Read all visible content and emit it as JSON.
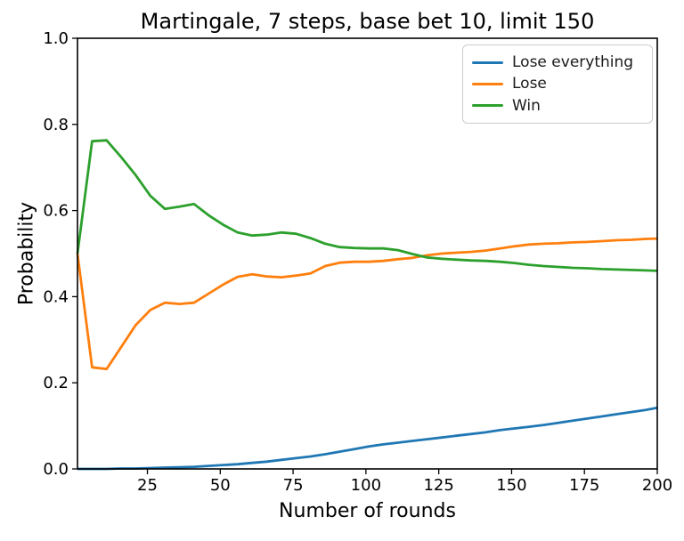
{
  "chart_data": {
    "type": "line",
    "title": "Martingale, 7 steps, base bet 10, limit 150",
    "xlabel": "Number of rounds",
    "ylabel": "Probability",
    "xlim": [
      1,
      200
    ],
    "ylim": [
      0.0,
      1.0
    ],
    "xticks": [
      25,
      50,
      75,
      100,
      125,
      150,
      175,
      200
    ],
    "yticks": [
      0.0,
      0.2,
      0.4,
      0.6,
      0.8,
      1.0
    ],
    "grid": false,
    "legend_position": "upper right",
    "x": [
      1,
      6,
      11,
      16,
      21,
      26,
      31,
      36,
      41,
      46,
      51,
      56,
      61,
      66,
      71,
      76,
      81,
      86,
      91,
      96,
      101,
      106,
      111,
      116,
      121,
      126,
      131,
      136,
      141,
      146,
      151,
      156,
      161,
      166,
      171,
      176,
      181,
      186,
      191,
      196,
      200
    ],
    "series": [
      {
        "name": "Lose everything",
        "color": "#1f77b4",
        "values": [
          0.0,
          0.0,
          0.0,
          0.001,
          0.001,
          0.002,
          0.003,
          0.004,
          0.005,
          0.007,
          0.009,
          0.011,
          0.014,
          0.017,
          0.021,
          0.025,
          0.029,
          0.034,
          0.04,
          0.046,
          0.052,
          0.057,
          0.061,
          0.065,
          0.069,
          0.073,
          0.077,
          0.081,
          0.085,
          0.09,
          0.094,
          0.098,
          0.102,
          0.107,
          0.112,
          0.117,
          0.122,
          0.127,
          0.132,
          0.137,
          0.142
        ]
      },
      {
        "name": "Lose",
        "color": "#ff7f0e",
        "values": [
          0.5,
          0.236,
          0.232,
          0.283,
          0.334,
          0.369,
          0.386,
          0.383,
          0.386,
          0.407,
          0.428,
          0.446,
          0.452,
          0.447,
          0.445,
          0.449,
          0.454,
          0.471,
          0.479,
          0.481,
          0.481,
          0.483,
          0.487,
          0.49,
          0.496,
          0.5,
          0.502,
          0.504,
          0.507,
          0.512,
          0.517,
          0.521,
          0.523,
          0.524,
          0.526,
          0.527,
          0.529,
          0.531,
          0.532,
          0.534,
          0.535
        ]
      },
      {
        "name": "Win",
        "color": "#2ca02c",
        "values": [
          0.5,
          0.761,
          0.763,
          0.724,
          0.682,
          0.634,
          0.604,
          0.609,
          0.615,
          0.589,
          0.567,
          0.549,
          0.542,
          0.544,
          0.549,
          0.546,
          0.536,
          0.523,
          0.515,
          0.513,
          0.512,
          0.512,
          0.508,
          0.499,
          0.491,
          0.488,
          0.486,
          0.484,
          0.483,
          0.481,
          0.478,
          0.474,
          0.471,
          0.469,
          0.467,
          0.466,
          0.464,
          0.463,
          0.462,
          0.461,
          0.46
        ]
      }
    ]
  }
}
